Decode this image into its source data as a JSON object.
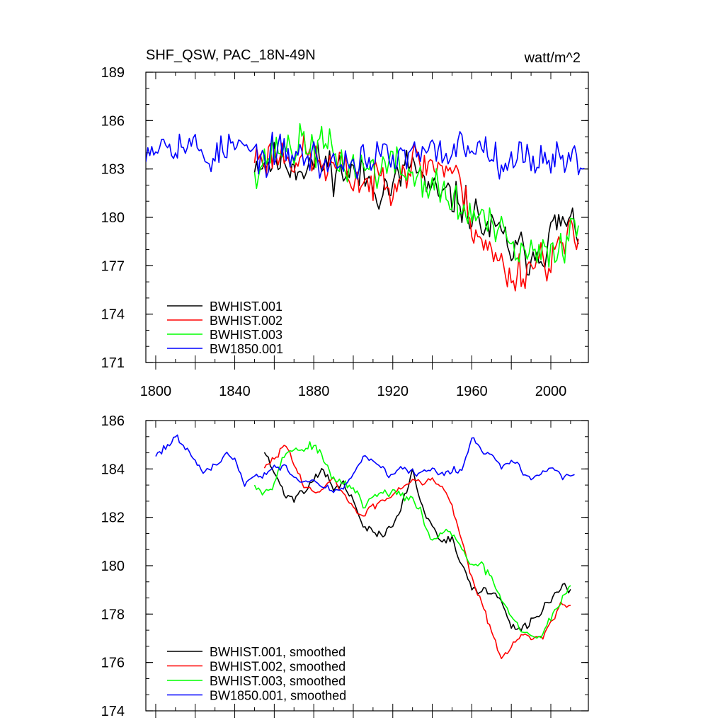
{
  "chart_data": [
    {
      "type": "line",
      "title": "SHF_QSW, PAC_18N-49N",
      "units": "watt/m^2",
      "xlabel": "",
      "ylabel": "",
      "xlim": [
        1795,
        2019
      ],
      "ylim": [
        171,
        189
      ],
      "x_ticks": [
        1800,
        1840,
        1880,
        1920,
        1960,
        2000
      ],
      "y_ticks": [
        171,
        174,
        177,
        180,
        183,
        186,
        189
      ],
      "grid": false,
      "legend_position": "bottom-left",
      "series": [
        {
          "name": "BWHIST.001",
          "color": "#000000",
          "start": 1850,
          "end": 2014,
          "step": 1,
          "noise": 2.0,
          "seed": 11,
          "anchors": [
            [
              1850,
              183.6
            ],
            [
              1870,
              183.4
            ],
            [
              1890,
              183.2
            ],
            [
              1905,
              182.4
            ],
            [
              1920,
              181.8
            ],
            [
              1930,
              183.4
            ],
            [
              1940,
              181.2
            ],
            [
              1955,
              181.0
            ],
            [
              1965,
              179.6
            ],
            [
              1975,
              178.6
            ],
            [
              1985,
              177.6
            ],
            [
              1995,
              178.2
            ],
            [
              2005,
              179.6
            ],
            [
              2014,
              179.2
            ]
          ]
        },
        {
          "name": "BWHIST.002",
          "color": "#ff0000",
          "start": 1850,
          "end": 2014,
          "step": 1,
          "noise": 2.0,
          "seed": 23,
          "anchors": [
            [
              1850,
              183.8
            ],
            [
              1870,
              184.0
            ],
            [
              1890,
              183.0
            ],
            [
              1910,
              182.0
            ],
            [
              1925,
              183.2
            ],
            [
              1940,
              183.4
            ],
            [
              1950,
              183.0
            ],
            [
              1960,
              180.0
            ],
            [
              1970,
              177.6
            ],
            [
              1980,
              176.4
            ],
            [
              1990,
              177.2
            ],
            [
              2000,
              177.8
            ],
            [
              2014,
              178.6
            ]
          ]
        },
        {
          "name": "BWHIST.003",
          "color": "#00ff00",
          "start": 1850,
          "end": 2014,
          "step": 1,
          "noise": 2.0,
          "seed": 37,
          "anchors": [
            [
              1850,
              183.4
            ],
            [
              1865,
              184.4
            ],
            [
              1880,
              184.6
            ],
            [
              1895,
              183.4
            ],
            [
              1905,
              183.0
            ],
            [
              1920,
              183.2
            ],
            [
              1935,
              182.4
            ],
            [
              1945,
              181.4
            ],
            [
              1955,
              180.4
            ],
            [
              1965,
              180.0
            ],
            [
              1975,
              178.6
            ],
            [
              1985,
              177.6
            ],
            [
              1995,
              177.4
            ],
            [
              2005,
              178.6
            ],
            [
              2014,
              179.4
            ]
          ]
        },
        {
          "name": "BW1850.001",
          "color": "#0000ff",
          "start": 1795,
          "end": 2017,
          "step": 1,
          "noise": 1.7,
          "seed": 53,
          "anchors": [
            [
              1795,
              184.6
            ],
            [
              1810,
              185.0
            ],
            [
              1825,
              183.8
            ],
            [
              1840,
              184.4
            ],
            [
              1855,
              183.6
            ],
            [
              1870,
              184.0
            ],
            [
              1890,
              183.2
            ],
            [
              1905,
              183.8
            ],
            [
              1920,
              183.6
            ],
            [
              1940,
              183.8
            ],
            [
              1960,
              184.6
            ],
            [
              1975,
              184.0
            ],
            [
              1985,
              183.6
            ],
            [
              2000,
              183.9
            ],
            [
              2017,
              183.4
            ]
          ]
        }
      ]
    },
    {
      "type": "line",
      "title": "",
      "xlabel": "",
      "ylabel": "",
      "xlim": [
        1795,
        2019
      ],
      "ylim": [
        174,
        186
      ],
      "x_ticks": [
        1800,
        1840,
        1880,
        1920,
        1960,
        2000
      ],
      "y_ticks": [
        174,
        176,
        178,
        180,
        182,
        184,
        186
      ],
      "x_tick_labels_shown": false,
      "grid": false,
      "legend_position": "bottom-left",
      "series": [
        {
          "name": "BWHIST.001, smoothed",
          "color": "#000000",
          "start": 1855,
          "end": 2010,
          "step": 1,
          "noise": 0.28,
          "seed": 71,
          "anchors": [
            [
              1855,
              184.7
            ],
            [
              1860,
              183.8
            ],
            [
              1865,
              183.0
            ],
            [
              1870,
              182.8
            ],
            [
              1875,
              183.1
            ],
            [
              1880,
              183.6
            ],
            [
              1885,
              184.1
            ],
            [
              1890,
              183.1
            ],
            [
              1895,
              183.4
            ],
            [
              1900,
              182.6
            ],
            [
              1905,
              181.7
            ],
            [
              1910,
              181.3
            ],
            [
              1915,
              181.3
            ],
            [
              1920,
              181.6
            ],
            [
              1925,
              182.6
            ],
            [
              1930,
              183.9
            ],
            [
              1935,
              182.4
            ],
            [
              1940,
              181.6
            ],
            [
              1945,
              181.1
            ],
            [
              1950,
              181.2
            ],
            [
              1955,
              179.9
            ],
            [
              1960,
              179.1
            ],
            [
              1965,
              178.9
            ],
            [
              1970,
              179.0
            ],
            [
              1975,
              178.5
            ],
            [
              1980,
              177.4
            ],
            [
              1985,
              177.3
            ],
            [
              1990,
              177.7
            ],
            [
              1995,
              178.1
            ],
            [
              2000,
              178.6
            ],
            [
              2005,
              179.2
            ],
            [
              2010,
              179.0
            ]
          ]
        },
        {
          "name": "BWHIST.002, smoothed",
          "color": "#ff0000",
          "start": 1855,
          "end": 2010,
          "step": 1,
          "noise": 0.22,
          "seed": 83,
          "anchors": [
            [
              1855,
              184.0
            ],
            [
              1860,
              184.4
            ],
            [
              1865,
              185.0
            ],
            [
              1870,
              184.4
            ],
            [
              1875,
              183.3
            ],
            [
              1880,
              183.0
            ],
            [
              1885,
              183.1
            ],
            [
              1890,
              183.6
            ],
            [
              1895,
              183.0
            ],
            [
              1900,
              182.3
            ],
            [
              1905,
              182.1
            ],
            [
              1910,
              182.4
            ],
            [
              1915,
              182.7
            ],
            [
              1920,
              183.0
            ],
            [
              1925,
              183.3
            ],
            [
              1930,
              183.6
            ],
            [
              1935,
              183.5
            ],
            [
              1940,
              183.6
            ],
            [
              1945,
              183.3
            ],
            [
              1950,
              182.5
            ],
            [
              1955,
              181.0
            ],
            [
              1960,
              179.6
            ],
            [
              1965,
              178.5
            ],
            [
              1970,
              177.3
            ],
            [
              1975,
              176.1
            ],
            [
              1980,
              176.6
            ],
            [
              1985,
              177.2
            ],
            [
              1990,
              177.1
            ],
            [
              1995,
              177.0
            ],
            [
              2000,
              177.6
            ],
            [
              2005,
              178.3
            ],
            [
              2010,
              178.4
            ]
          ]
        },
        {
          "name": "BWHIST.003, smoothed",
          "color": "#00ff00",
          "start": 1850,
          "end": 2010,
          "step": 1,
          "noise": 0.28,
          "seed": 97,
          "anchors": [
            [
              1850,
              183.5
            ],
            [
              1855,
              183.0
            ],
            [
              1860,
              183.6
            ],
            [
              1865,
              184.5
            ],
            [
              1870,
              184.9
            ],
            [
              1875,
              184.8
            ],
            [
              1880,
              185.0
            ],
            [
              1885,
              184.3
            ],
            [
              1890,
              183.6
            ],
            [
              1895,
              183.3
            ],
            [
              1900,
              183.3
            ],
            [
              1905,
              182.4
            ],
            [
              1910,
              182.8
            ],
            [
              1915,
              183.0
            ],
            [
              1920,
              183.0
            ],
            [
              1925,
              182.9
            ],
            [
              1930,
              182.7
            ],
            [
              1935,
              182.0
            ],
            [
              1940,
              181.0
            ],
            [
              1945,
              181.4
            ],
            [
              1950,
              181.3
            ],
            [
              1955,
              180.6
            ],
            [
              1960,
              180.1
            ],
            [
              1965,
              179.9
            ],
            [
              1970,
              179.5
            ],
            [
              1975,
              178.6
            ],
            [
              1980,
              177.8
            ],
            [
              1985,
              177.3
            ],
            [
              1990,
              177.0
            ],
            [
              1995,
              177.1
            ],
            [
              2000,
              177.8
            ],
            [
              2005,
              178.6
            ],
            [
              2010,
              179.2
            ]
          ]
        },
        {
          "name": "BW1850.001, smoothed",
          "color": "#0000ff",
          "start": 1800,
          "end": 2012,
          "step": 1,
          "noise": 0.25,
          "seed": 113,
          "anchors": [
            [
              1800,
              184.6
            ],
            [
              1805,
              185.0
            ],
            [
              1810,
              185.3
            ],
            [
              1815,
              184.8
            ],
            [
              1820,
              184.4
            ],
            [
              1825,
              183.8
            ],
            [
              1830,
              184.1
            ],
            [
              1835,
              184.7
            ],
            [
              1840,
              184.4
            ],
            [
              1845,
              183.4
            ],
            [
              1850,
              183.6
            ],
            [
              1855,
              183.9
            ],
            [
              1860,
              184.0
            ],
            [
              1865,
              184.1
            ],
            [
              1870,
              183.6
            ],
            [
              1875,
              183.4
            ],
            [
              1880,
              183.6
            ],
            [
              1885,
              183.3
            ],
            [
              1890,
              183.0
            ],
            [
              1895,
              183.2
            ],
            [
              1900,
              183.8
            ],
            [
              1905,
              184.5
            ],
            [
              1910,
              184.3
            ],
            [
              1915,
              184.0
            ],
            [
              1920,
              183.6
            ],
            [
              1925,
              184.1
            ],
            [
              1930,
              183.9
            ],
            [
              1935,
              183.8
            ],
            [
              1940,
              184.0
            ],
            [
              1945,
              183.8
            ],
            [
              1950,
              183.9
            ],
            [
              1955,
              184.0
            ],
            [
              1960,
              185.2
            ],
            [
              1965,
              184.8
            ],
            [
              1970,
              184.6
            ],
            [
              1975,
              184.2
            ],
            [
              1980,
              184.4
            ],
            [
              1985,
              184.0
            ],
            [
              1990,
              183.5
            ],
            [
              1995,
              183.8
            ],
            [
              2000,
              184.0
            ],
            [
              2005,
              183.7
            ],
            [
              2010,
              183.8
            ],
            [
              2012,
              183.8
            ]
          ]
        }
      ]
    }
  ]
}
